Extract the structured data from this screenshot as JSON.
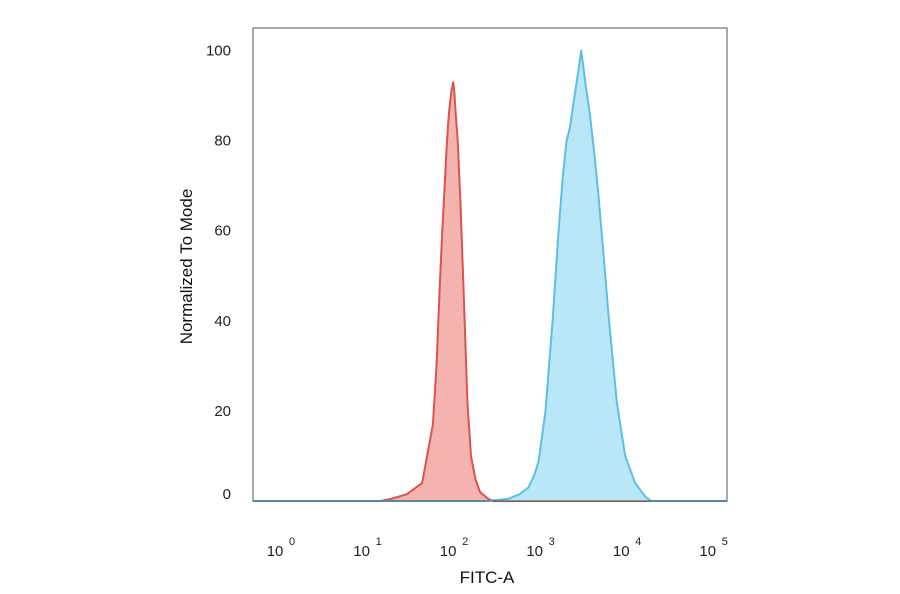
{
  "chart_data": {
    "type": "area",
    "title": "",
    "xlabel": "FITC-A",
    "ylabel": "Normalized To Mode",
    "xscale": "log",
    "xlim": [
      0.5,
      150000
    ],
    "ylim": [
      0,
      105
    ],
    "grid": false,
    "legend": "none",
    "x_ticks": [
      {
        "base": "10",
        "exp": "0"
      },
      {
        "base": "10",
        "exp": "1"
      },
      {
        "base": "10",
        "exp": "2"
      },
      {
        "base": "10",
        "exp": "3"
      },
      {
        "base": "10",
        "exp": "4"
      },
      {
        "base": "10",
        "exp": "5"
      }
    ],
    "y_ticks": [
      "0",
      "20",
      "40",
      "60",
      "80",
      "100"
    ],
    "series": [
      {
        "color": "#d9534f",
        "fill": "#f2a6a1",
        "points": [
          [
            0.5,
            0
          ],
          [
            15,
            0
          ],
          [
            20,
            0.5
          ],
          [
            30,
            1.5
          ],
          [
            45,
            4
          ],
          [
            60,
            17
          ],
          [
            66,
            30
          ],
          [
            72,
            48
          ],
          [
            77,
            60
          ],
          [
            82,
            70
          ],
          [
            86,
            78
          ],
          [
            90,
            84
          ],
          [
            94,
            88
          ],
          [
            98,
            91
          ],
          [
            103,
            93
          ],
          [
            106,
            91
          ],
          [
            110,
            86
          ],
          [
            116,
            80
          ],
          [
            125,
            66
          ],
          [
            135,
            48
          ],
          [
            150,
            22
          ],
          [
            165,
            10
          ],
          [
            185,
            5
          ],
          [
            210,
            2
          ],
          [
            260,
            0.5
          ],
          [
            300,
            0
          ],
          [
            150000,
            0
          ]
        ]
      },
      {
        "color": "#5bc0de",
        "fill": "#aee3f7",
        "points": [
          [
            0.5,
            0
          ],
          [
            250,
            0
          ],
          [
            450,
            0.5
          ],
          [
            600,
            1.5
          ],
          [
            760,
            3
          ],
          [
            900,
            6
          ],
          [
            1000,
            9
          ],
          [
            1200,
            20
          ],
          [
            1450,
            40
          ],
          [
            1700,
            60
          ],
          [
            1900,
            72
          ],
          [
            2100,
            80
          ],
          [
            2300,
            83
          ],
          [
            2600,
            90
          ],
          [
            2900,
            96
          ],
          [
            3100,
            100
          ],
          [
            3250,
            97
          ],
          [
            3500,
            92
          ],
          [
            3900,
            86
          ],
          [
            4400,
            77
          ],
          [
            4900,
            68
          ],
          [
            5600,
            55
          ],
          [
            6500,
            40
          ],
          [
            8000,
            22
          ],
          [
            10000,
            10
          ],
          [
            13000,
            4
          ],
          [
            17000,
            1
          ],
          [
            20000,
            0
          ],
          [
            150000,
            0
          ]
        ]
      }
    ]
  }
}
